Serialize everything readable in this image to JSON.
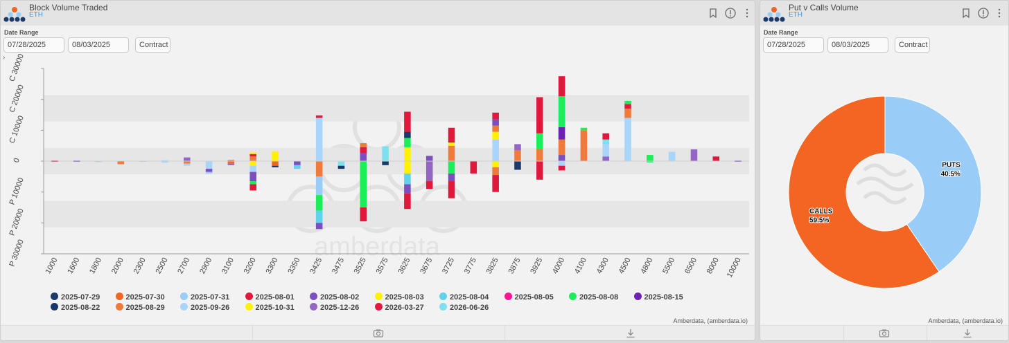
{
  "left_panel": {
    "title": "Block Volume Traded",
    "subtitle": "ETH",
    "date_range_label": "Date Range",
    "start_date": "07/28/2025",
    "end_date": "08/03/2025",
    "contract_button": "Contract",
    "expand_toggle": "›",
    "credit": "Amberdata, (amberdata.io)",
    "watermark": "amberdata"
  },
  "right_panel": {
    "title": "Put v Calls Volume",
    "subtitle": "ETH",
    "date_range_label": "Date Range",
    "start_date": "07/28/2025",
    "end_date": "08/03/2025",
    "contract_button": "Contract",
    "credit": "Amberdata, (amberdata.io)"
  },
  "icons": {
    "logo": "amberdata-logo-icon",
    "bookmark": "bookmark-icon",
    "info": "info-icon",
    "menu": "more-vertical-icon",
    "camera": "camera-icon",
    "download": "download-icon"
  },
  "colors": {
    "accent": "#3b9ad9",
    "calls": "#f26522",
    "puts": "#99cdf8"
  },
  "chart_data": [
    {
      "type": "bar",
      "title": "Block Volume Traded",
      "orientation": "diverging stacked (calls up, puts down)",
      "categories": [
        "1000",
        "1600",
        "1800",
        "2000",
        "2300",
        "2500",
        "2700",
        "2900",
        "3100",
        "3200",
        "3300",
        "3350",
        "3425",
        "3475",
        "3525",
        "3575",
        "3625",
        "3675",
        "3725",
        "3775",
        "3825",
        "3875",
        "3925",
        "4000",
        "4100",
        "4300",
        "4500",
        "4800",
        "5500",
        "6500",
        "8000",
        "10000"
      ],
      "y_ticks": [
        "C 30000",
        "C 20000",
        "C 10000",
        "0",
        "P 10000",
        "P 20000",
        "P 30000"
      ],
      "ylim": [
        -30000,
        30000
      ],
      "legend": [
        {
          "name": "2025-07-29",
          "color": "#1b3a6b"
        },
        {
          "name": "2025-07-30",
          "color": "#f26522"
        },
        {
          "name": "2025-07-31",
          "color": "#99cdf8"
        },
        {
          "name": "2025-08-01",
          "color": "#e0183c"
        },
        {
          "name": "2025-08-02",
          "color": "#7b4fc0"
        },
        {
          "name": "2025-08-03",
          "color": "#fff200"
        },
        {
          "name": "2025-08-04",
          "color": "#5fd3ec"
        },
        {
          "name": "2025-08-05",
          "color": "#ff1493"
        },
        {
          "name": "2025-08-08",
          "color": "#1aef5a"
        },
        {
          "name": "2025-08-15",
          "color": "#7021b5"
        },
        {
          "name": "2025-08-22",
          "color": "#163968"
        },
        {
          "name": "2025-08-29",
          "color": "#f07a3b"
        },
        {
          "name": "2025-09-26",
          "color": "#a9d4fb"
        },
        {
          "name": "2025-10-31",
          "color": "#fff200"
        },
        {
          "name": "2025-12-26",
          "color": "#9466c4"
        },
        {
          "name": "2026-03-27",
          "color": "#e3193f"
        },
        {
          "name": "2026-06-26",
          "color": "#7ee0ee"
        }
      ],
      "series": [
        {
          "category": "1000",
          "calls": 200,
          "puts": 200,
          "segments": [
            {
              "s": 3,
              "v": 200
            }
          ],
          "psegments": [
            {
              "s": 3,
              "v": 200
            }
          ]
        },
        {
          "category": "1600",
          "calls": 200,
          "puts": 200,
          "segments": [
            {
              "s": 4,
              "v": 200
            }
          ],
          "psegments": [
            {
              "s": 4,
              "v": 200
            }
          ]
        },
        {
          "category": "1800",
          "calls": 0,
          "puts": 300,
          "segments": [],
          "psegments": [
            {
              "s": 2,
              "v": 300
            }
          ]
        },
        {
          "category": "2000",
          "calls": 0,
          "puts": 1000,
          "segments": [],
          "psegments": [
            {
              "s": 11,
              "v": 1000
            }
          ]
        },
        {
          "category": "2300",
          "calls": 0,
          "puts": 200,
          "segments": [],
          "psegments": [
            {
              "s": 2,
              "v": 200
            }
          ]
        },
        {
          "category": "2500",
          "calls": 300,
          "puts": 500,
          "segments": [
            {
              "s": 12,
              "v": 300
            }
          ],
          "psegments": [
            {
              "s": 12,
              "v": 500
            }
          ]
        },
        {
          "category": "2700",
          "calls": 1200,
          "puts": 1500,
          "segments": [
            {
              "s": 14,
              "v": 1200
            }
          ],
          "psegments": [
            {
              "s": 11,
              "v": 800
            },
            {
              "s": 12,
              "v": 700
            }
          ]
        },
        {
          "category": "2900",
          "calls": 0,
          "puts": 4000,
          "segments": [],
          "psegments": [
            {
              "s": 12,
              "v": 2500
            },
            {
              "s": 4,
              "v": 1000
            },
            {
              "s": 2,
              "v": 500
            }
          ]
        },
        {
          "category": "3100",
          "calls": 400,
          "puts": 1300,
          "segments": [
            {
              "s": 11,
              "v": 400
            }
          ],
          "psegments": [
            {
              "s": 1,
              "v": 800
            },
            {
              "s": 14,
              "v": 500
            }
          ]
        },
        {
          "category": "3200",
          "calls": 2800,
          "puts": 9500,
          "segments": [
            {
              "s": 11,
              "v": 1500
            },
            {
              "s": 3,
              "v": 800
            },
            {
              "s": 5,
              "v": 500
            }
          ],
          "psegments": [
            {
              "s": 5,
              "v": 1500
            },
            {
              "s": 12,
              "v": 2000
            },
            {
              "s": 4,
              "v": 3000
            },
            {
              "s": 8,
              "v": 1000
            },
            {
              "s": 3,
              "v": 2000
            }
          ]
        },
        {
          "category": "3300",
          "calls": 3200,
          "puts": 2000,
          "segments": [
            {
              "s": 13,
              "v": 3200
            }
          ],
          "psegments": [
            {
              "s": 1,
              "v": 1500
            },
            {
              "s": 10,
              "v": 500
            }
          ]
        },
        {
          "category": "3350",
          "calls": 0,
          "puts": 2500,
          "segments": [],
          "psegments": [
            {
              "s": 4,
              "v": 1300
            },
            {
              "s": 6,
              "v": 1200
            }
          ]
        },
        {
          "category": "3425",
          "calls": 14800,
          "puts": 22000,
          "segments": [
            {
              "s": 12,
              "v": 14000
            },
            {
              "s": 3,
              "v": 800
            }
          ],
          "psegments": [
            {
              "s": 11,
              "v": 5000
            },
            {
              "s": 2,
              "v": 6000
            },
            {
              "s": 8,
              "v": 5000
            },
            {
              "s": 6,
              "v": 4000
            },
            {
              "s": 4,
              "v": 2000
            }
          ]
        },
        {
          "category": "3475",
          "calls": 0,
          "puts": 2500,
          "segments": [],
          "psegments": [
            {
              "s": 16,
              "v": 1500
            },
            {
              "s": 10,
              "v": 1000
            }
          ]
        },
        {
          "category": "3525",
          "calls": 5800,
          "puts": 19500,
          "segments": [
            {
              "s": 4,
              "v": 2500
            },
            {
              "s": 15,
              "v": 2000
            },
            {
              "s": 11,
              "v": 1300
            }
          ],
          "psegments": [
            {
              "s": 8,
              "v": 15000
            },
            {
              "s": 3,
              "v": 4500
            }
          ]
        },
        {
          "category": "3575",
          "calls": 4800,
          "puts": 1300,
          "segments": [
            {
              "s": 16,
              "v": 4800
            }
          ],
          "psegments": [
            {
              "s": 10,
              "v": 1300
            }
          ]
        },
        {
          "category": "3625",
          "calls": 16000,
          "puts": 15500,
          "segments": [
            {
              "s": 5,
              "v": 4500
            },
            {
              "s": 8,
              "v": 3000
            },
            {
              "s": 0,
              "v": 2000
            },
            {
              "s": 3,
              "v": 6500
            }
          ],
          "psegments": [
            {
              "s": 5,
              "v": 4000
            },
            {
              "s": 6,
              "v": 3500
            },
            {
              "s": 4,
              "v": 3000
            },
            {
              "s": 3,
              "v": 5000
            }
          ]
        },
        {
          "category": "3675",
          "calls": 1700,
          "puts": 9000,
          "segments": [
            {
              "s": 4,
              "v": 1700
            }
          ],
          "psegments": [
            {
              "s": 14,
              "v": 6500
            },
            {
              "s": 3,
              "v": 2500
            }
          ]
        },
        {
          "category": "3725",
          "calls": 10800,
          "puts": 12000,
          "segments": [
            {
              "s": 11,
              "v": 5000
            },
            {
              "s": 13,
              "v": 1000
            },
            {
              "s": 3,
              "v": 4800
            }
          ],
          "psegments": [
            {
              "s": 8,
              "v": 4000
            },
            {
              "s": 4,
              "v": 2500
            },
            {
              "s": 3,
              "v": 5500
            }
          ]
        },
        {
          "category": "3775",
          "calls": 0,
          "puts": 4000,
          "segments": [],
          "psegments": [
            {
              "s": 3,
              "v": 4000
            }
          ]
        },
        {
          "category": "3825",
          "calls": 15700,
          "puts": 10000,
          "segments": [
            {
              "s": 12,
              "v": 7000
            },
            {
              "s": 5,
              "v": 2500
            },
            {
              "s": 11,
              "v": 2000
            },
            {
              "s": 4,
              "v": 2000
            },
            {
              "s": 3,
              "v": 2200
            }
          ],
          "psegments": [
            {
              "s": 5,
              "v": 2000
            },
            {
              "s": 11,
              "v": 2500
            },
            {
              "s": 3,
              "v": 5500
            }
          ]
        },
        {
          "category": "3875",
          "calls": 5500,
          "puts": 2800,
          "segments": [
            {
              "s": 11,
              "v": 3500
            },
            {
              "s": 14,
              "v": 2000
            }
          ],
          "psegments": [
            {
              "s": 0,
              "v": 2800
            }
          ]
        },
        {
          "category": "3925",
          "calls": 20700,
          "puts": 6000,
          "segments": [
            {
              "s": 11,
              "v": 4000
            },
            {
              "s": 8,
              "v": 5000
            },
            {
              "s": 3,
              "v": 11700
            }
          ],
          "psegments": [
            {
              "s": 3,
              "v": 6000
            }
          ]
        },
        {
          "category": "4000",
          "calls": 27500,
          "puts": 3000,
          "segments": [
            {
              "s": 4,
              "v": 2000
            },
            {
              "s": 11,
              "v": 5000
            },
            {
              "s": 9,
              "v": 4000
            },
            {
              "s": 8,
              "v": 10000
            },
            {
              "s": 3,
              "v": 6500
            }
          ],
          "psegments": [
            {
              "s": 12,
              "v": 1500
            },
            {
              "s": 3,
              "v": 1500
            }
          ]
        },
        {
          "category": "4100",
          "calls": 10800,
          "puts": 0,
          "segments": [
            {
              "s": 11,
              "v": 10000
            },
            {
              "s": 8,
              "v": 800
            }
          ],
          "psegments": []
        },
        {
          "category": "4300",
          "calls": 9000,
          "puts": 0,
          "segments": [
            {
              "s": 14,
              "v": 1500
            },
            {
              "s": 12,
              "v": 4000
            },
            {
              "s": 16,
              "v": 1500
            },
            {
              "s": 3,
              "v": 2000
            }
          ],
          "psegments": []
        },
        {
          "category": "4500",
          "calls": 19500,
          "puts": 0,
          "segments": [
            {
              "s": 12,
              "v": 14000
            },
            {
              "s": 11,
              "v": 3000
            },
            {
              "s": 15,
              "v": 1500
            },
            {
              "s": 8,
              "v": 1000
            }
          ],
          "psegments": []
        },
        {
          "category": "4800",
          "calls": 2000,
          "puts": 400,
          "segments": [
            {
              "s": 8,
              "v": 2000
            }
          ],
          "psegments": [
            {
              "s": 8,
              "v": 400
            }
          ]
        },
        {
          "category": "5500",
          "calls": 3000,
          "puts": 0,
          "segments": [
            {
              "s": 12,
              "v": 3000
            }
          ],
          "psegments": []
        },
        {
          "category": "6500",
          "calls": 3800,
          "puts": 0,
          "segments": [
            {
              "s": 14,
              "v": 3800
            }
          ],
          "psegments": []
        },
        {
          "category": "8000",
          "calls": 1500,
          "puts": 0,
          "segments": [
            {
              "s": 3,
              "v": 1500
            }
          ],
          "psegments": []
        },
        {
          "category": "10000",
          "calls": 200,
          "puts": 200,
          "segments": [
            {
              "s": 4,
              "v": 200
            }
          ],
          "psegments": [
            {
              "s": 4,
              "v": 200
            }
          ]
        }
      ]
    },
    {
      "type": "pie",
      "title": "Put v Calls Volume",
      "donut": true,
      "slices": [
        {
          "label": "PUTS",
          "value": 40.5,
          "display": "40.5%",
          "color": "#99cdf8"
        },
        {
          "label": "CALLS",
          "value": 59.5,
          "display": "59.5%",
          "color": "#f26522"
        }
      ]
    }
  ]
}
